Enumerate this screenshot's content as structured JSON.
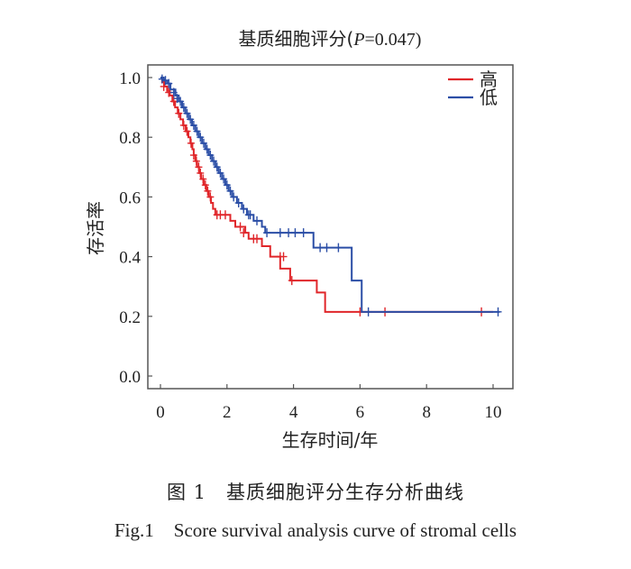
{
  "chart_data": {
    "type": "line",
    "subtype": "kaplan-meier-step",
    "title_prefix": "基质细胞评分(",
    "title_p_label": "P",
    "title_p_value": "=0.047)",
    "title": "基质细胞评分(P=0.047)",
    "xlabel": "生存时间/年",
    "ylabel": "存活率",
    "xlim": [
      -0.3,
      10.6
    ],
    "ylim": [
      -0.05,
      1.04
    ],
    "xticks": [
      0,
      2,
      4,
      6,
      8,
      10
    ],
    "xtick_labels": [
      "0",
      "2",
      "4",
      "6",
      "8",
      "10"
    ],
    "yticks": [
      0.0,
      0.2,
      0.4,
      0.6,
      0.8,
      1.0
    ],
    "ytick_labels": [
      "0.0",
      "0.2",
      "0.4",
      "0.6",
      "0.8",
      "1.0"
    ],
    "grid": false,
    "legend_position": "top-right",
    "series": [
      {
        "name": "高",
        "color": "#e0262a",
        "steps": [
          [
            0,
            1.0
          ],
          [
            0.05,
            0.985
          ],
          [
            0.12,
            0.97
          ],
          [
            0.2,
            0.955
          ],
          [
            0.28,
            0.94
          ],
          [
            0.36,
            0.92
          ],
          [
            0.44,
            0.9
          ],
          [
            0.52,
            0.88
          ],
          [
            0.6,
            0.86
          ],
          [
            0.68,
            0.84
          ],
          [
            0.76,
            0.82
          ],
          [
            0.84,
            0.8
          ],
          [
            0.9,
            0.78
          ],
          [
            0.96,
            0.76
          ],
          [
            1.0,
            0.74
          ],
          [
            1.05,
            0.72
          ],
          [
            1.1,
            0.7
          ],
          [
            1.16,
            0.68
          ],
          [
            1.22,
            0.66
          ],
          [
            1.3,
            0.64
          ],
          [
            1.38,
            0.62
          ],
          [
            1.45,
            0.6
          ],
          [
            1.52,
            0.58
          ],
          [
            1.58,
            0.56
          ],
          [
            1.65,
            0.54
          ],
          [
            2.1,
            0.52
          ],
          [
            2.25,
            0.5
          ],
          [
            2.55,
            0.48
          ],
          [
            2.65,
            0.46
          ],
          [
            3.05,
            0.435
          ],
          [
            3.3,
            0.4
          ],
          [
            3.6,
            0.36
          ],
          [
            3.9,
            0.32
          ],
          [
            4.7,
            0.28
          ],
          [
            4.95,
            0.215
          ],
          [
            10.0,
            0.215
          ]
        ],
        "censor": [
          [
            0.1,
            0.97
          ],
          [
            0.25,
            0.95
          ],
          [
            0.4,
            0.92
          ],
          [
            0.55,
            0.88
          ],
          [
            0.7,
            0.84
          ],
          [
            0.8,
            0.82
          ],
          [
            0.92,
            0.78
          ],
          [
            1.0,
            0.74
          ],
          [
            1.08,
            0.72
          ],
          [
            1.15,
            0.7
          ],
          [
            1.2,
            0.68
          ],
          [
            1.28,
            0.66
          ],
          [
            1.35,
            0.64
          ],
          [
            1.42,
            0.62
          ],
          [
            1.5,
            0.6
          ],
          [
            1.7,
            0.54
          ],
          [
            1.8,
            0.54
          ],
          [
            1.95,
            0.54
          ],
          [
            2.4,
            0.5
          ],
          [
            2.5,
            0.48
          ],
          [
            2.8,
            0.46
          ],
          [
            2.9,
            0.46
          ],
          [
            3.6,
            0.4
          ],
          [
            3.7,
            0.4
          ],
          [
            3.95,
            0.32
          ],
          [
            6.0,
            0.215
          ],
          [
            6.75,
            0.215
          ],
          [
            9.65,
            0.215
          ]
        ]
      },
      {
        "name": "低",
        "color": "#2b4ea6",
        "steps": [
          [
            0,
            1.0
          ],
          [
            0.1,
            0.99
          ],
          [
            0.2,
            0.98
          ],
          [
            0.3,
            0.96
          ],
          [
            0.45,
            0.94
          ],
          [
            0.55,
            0.92
          ],
          [
            0.65,
            0.9
          ],
          [
            0.75,
            0.88
          ],
          [
            0.85,
            0.86
          ],
          [
            0.95,
            0.84
          ],
          [
            1.05,
            0.82
          ],
          [
            1.15,
            0.8
          ],
          [
            1.25,
            0.78
          ],
          [
            1.35,
            0.76
          ],
          [
            1.45,
            0.74
          ],
          [
            1.55,
            0.72
          ],
          [
            1.65,
            0.7
          ],
          [
            1.75,
            0.68
          ],
          [
            1.85,
            0.66
          ],
          [
            1.95,
            0.64
          ],
          [
            2.05,
            0.62
          ],
          [
            2.15,
            0.6
          ],
          [
            2.3,
            0.58
          ],
          [
            2.45,
            0.56
          ],
          [
            2.6,
            0.54
          ],
          [
            2.8,
            0.52
          ],
          [
            3.05,
            0.5
          ],
          [
            3.15,
            0.48
          ],
          [
            4.6,
            0.43
          ],
          [
            5.75,
            0.32
          ],
          [
            6.05,
            0.215
          ],
          [
            10.2,
            0.215
          ]
        ],
        "censor": [
          [
            0.05,
            0.995
          ],
          [
            0.15,
            0.99
          ],
          [
            0.25,
            0.98
          ],
          [
            0.4,
            0.95
          ],
          [
            0.5,
            0.93
          ],
          [
            0.6,
            0.92
          ],
          [
            0.7,
            0.9
          ],
          [
            0.8,
            0.88
          ],
          [
            0.9,
            0.86
          ],
          [
            1.0,
            0.84
          ],
          [
            1.1,
            0.82
          ],
          [
            1.2,
            0.8
          ],
          [
            1.3,
            0.78
          ],
          [
            1.4,
            0.76
          ],
          [
            1.5,
            0.74
          ],
          [
            1.6,
            0.72
          ],
          [
            1.7,
            0.7
          ],
          [
            1.8,
            0.68
          ],
          [
            1.9,
            0.66
          ],
          [
            2.0,
            0.64
          ],
          [
            2.1,
            0.62
          ],
          [
            2.2,
            0.6
          ],
          [
            2.35,
            0.58
          ],
          [
            2.5,
            0.56
          ],
          [
            2.65,
            0.54
          ],
          [
            2.7,
            0.54
          ],
          [
            2.9,
            0.52
          ],
          [
            3.2,
            0.48
          ],
          [
            3.6,
            0.48
          ],
          [
            3.85,
            0.48
          ],
          [
            4.05,
            0.48
          ],
          [
            4.3,
            0.48
          ],
          [
            4.8,
            0.43
          ],
          [
            5.0,
            0.43
          ],
          [
            5.35,
            0.43
          ],
          [
            6.25,
            0.215
          ],
          [
            10.15,
            0.215
          ]
        ]
      }
    ]
  },
  "caption": {
    "cn_number": "图 1",
    "cn_text": "基质细胞评分生存分析曲线",
    "en_number": "Fig.1",
    "en_text": "Score survival analysis curve of stromal cells"
  }
}
